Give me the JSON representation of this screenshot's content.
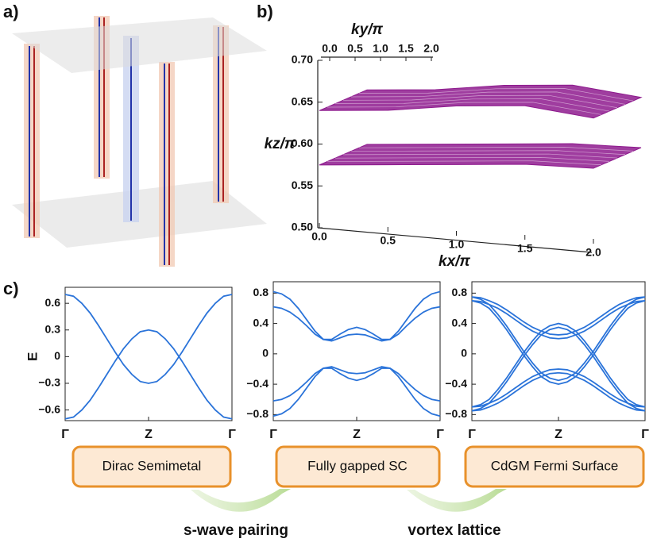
{
  "panel_labels": [
    "a)",
    "b)",
    "c)"
  ],
  "chart_data": [
    {
      "type": "surface3d",
      "xlabel": "kx/π",
      "ylabel": "ky/π",
      "zlabel": "kz/π",
      "xlim": [
        0,
        2
      ],
      "ylim": [
        0,
        2
      ],
      "zlim": [
        0.5,
        0.7
      ],
      "xticks": [
        {
          "value": 0,
          "label": "0.0"
        },
        {
          "value": 0.5,
          "label": "0.5"
        },
        {
          "value": 1,
          "label": "1.0"
        },
        {
          "value": 1.5,
          "label": "1.5"
        },
        {
          "value": 2,
          "label": "2.0"
        }
      ],
      "yticks": [
        {
          "value": 0,
          "label": "0.0"
        },
        {
          "value": 0.5,
          "label": "0.5"
        },
        {
          "value": 1,
          "label": "1.0"
        },
        {
          "value": 1.5,
          "label": "1.5"
        },
        {
          "value": 2,
          "label": "2.0"
        }
      ],
      "zticks": [
        {
          "value": 0.5,
          "label": "0.50"
        },
        {
          "value": 0.55,
          "label": "0.55"
        },
        {
          "value": 0.6,
          "label": "0.60"
        },
        {
          "value": 0.65,
          "label": "0.65"
        },
        {
          "value": 0.7,
          "label": "0.70"
        }
      ],
      "x": [
        0,
        0.5,
        1,
        1.5,
        2
      ],
      "series": [
        {
          "color": "#8e1b8e",
          "values": [
            0.64,
            0.645,
            0.655,
            0.66,
            0.65
          ]
        },
        {
          "color": "#8e1b8e",
          "values": [
            0.575,
            0.58,
            0.585,
            0.59,
            0.59
          ]
        }
      ]
    },
    {
      "type": "line",
      "ylabel": "E",
      "xlim": [
        0,
        2
      ],
      "ylim": [
        -0.72,
        0.78
      ],
      "xticks": [
        {
          "value": 0,
          "label": "Γ"
        },
        {
          "value": 1,
          "label": "Z"
        },
        {
          "value": 2,
          "label": "Γ"
        }
      ],
      "yticks": [
        {
          "value": -0.6,
          "label": "−0.6"
        },
        {
          "value": -0.3,
          "label": "−0.3"
        },
        0,
        0.3,
        0.6
      ],
      "x": [
        0,
        0.1,
        0.2,
        0.3,
        0.4,
        0.5,
        0.6,
        0.7,
        0.8,
        0.9,
        1,
        1.1,
        1.2,
        1.3,
        1.4,
        1.5,
        1.6,
        1.7,
        1.8,
        1.9,
        2
      ],
      "series": [
        {
          "color": "#2a73d9",
          "values": [
            0.7,
            0.68,
            0.6,
            0.49,
            0.35,
            0.2,
            0.05,
            -0.09,
            -0.2,
            -0.28,
            -0.3,
            -0.28,
            -0.2,
            -0.09,
            0.05,
            0.2,
            0.35,
            0.49,
            0.6,
            0.68,
            0.7
          ]
        },
        {
          "color": "#2a73d9",
          "values": [
            -0.7,
            -0.68,
            -0.6,
            -0.49,
            -0.35,
            -0.2,
            -0.05,
            0.09,
            0.2,
            0.28,
            0.3,
            0.28,
            0.2,
            0.09,
            -0.05,
            -0.2,
            -0.35,
            -0.49,
            -0.6,
            -0.68,
            -0.7
          ]
        }
      ]
    },
    {
      "type": "line",
      "xlim": [
        0,
        2
      ],
      "ylim": [
        -0.88,
        0.95
      ],
      "xticks": [
        {
          "value": 0,
          "label": "Γ"
        },
        {
          "value": 1,
          "label": "Z"
        },
        {
          "value": 2,
          "label": "Γ"
        }
      ],
      "yticks": [
        {
          "value": -0.8,
          "label": "−0.8"
        },
        {
          "value": -0.4,
          "label": "−0.4"
        },
        0,
        0.4,
        0.8
      ],
      "x": [
        0,
        0.1,
        0.2,
        0.3,
        0.4,
        0.5,
        0.6,
        0.7,
        0.8,
        0.9,
        1,
        1.1,
        1.2,
        1.3,
        1.4,
        1.5,
        1.6,
        1.7,
        1.8,
        1.9,
        2
      ],
      "series": [
        {
          "color": "#2a73d9",
          "values": [
            0.82,
            0.79,
            0.72,
            0.6,
            0.45,
            0.3,
            0.19,
            0.19,
            0.26,
            0.32,
            0.35,
            0.32,
            0.26,
            0.19,
            0.19,
            0.3,
            0.45,
            0.6,
            0.72,
            0.79,
            0.82
          ]
        },
        {
          "color": "#2a73d9",
          "values": [
            0.62,
            0.6,
            0.55,
            0.47,
            0.37,
            0.26,
            0.19,
            0.17,
            0.21,
            0.25,
            0.26,
            0.25,
            0.21,
            0.17,
            0.19,
            0.26,
            0.37,
            0.47,
            0.55,
            0.6,
            0.62
          ]
        },
        {
          "color": "#2a73d9",
          "values": [
            -0.82,
            -0.79,
            -0.72,
            -0.6,
            -0.45,
            -0.3,
            -0.19,
            -0.19,
            -0.26,
            -0.32,
            -0.35,
            -0.32,
            -0.26,
            -0.19,
            -0.19,
            -0.3,
            -0.45,
            -0.6,
            -0.72,
            -0.79,
            -0.82
          ]
        },
        {
          "color": "#2a73d9",
          "values": [
            -0.62,
            -0.6,
            -0.55,
            -0.47,
            -0.37,
            -0.26,
            -0.19,
            -0.17,
            -0.21,
            -0.25,
            -0.26,
            -0.25,
            -0.21,
            -0.17,
            -0.19,
            -0.26,
            -0.37,
            -0.47,
            -0.55,
            -0.6,
            -0.62
          ]
        }
      ]
    },
    {
      "type": "line",
      "xlim": [
        0,
        2
      ],
      "ylim": [
        -0.88,
        0.95
      ],
      "xticks": [
        {
          "value": 0,
          "label": "Γ"
        },
        {
          "value": 1,
          "label": "Z"
        },
        {
          "value": 2,
          "label": "Γ"
        }
      ],
      "yticks": [
        {
          "value": -0.8,
          "label": "−0.8"
        },
        {
          "value": -0.4,
          "label": "−0.4"
        },
        0,
        0.4,
        0.8
      ],
      "x": [
        0,
        0.1,
        0.2,
        0.3,
        0.4,
        0.5,
        0.6,
        0.7,
        0.8,
        0.9,
        1,
        1.1,
        1.2,
        1.3,
        1.4,
        1.5,
        1.6,
        1.7,
        1.8,
        1.9,
        2
      ],
      "series": [
        {
          "color": "#2a73d9",
          "values": [
            0.7,
            0.67,
            0.6,
            0.47,
            0.32,
            0.15,
            -0.02,
            -0.17,
            -0.3,
            -0.37,
            -0.4,
            -0.37,
            -0.3,
            -0.17,
            -0.02,
            0.15,
            0.32,
            0.47,
            0.6,
            0.67,
            0.7
          ]
        },
        {
          "color": "#2a73d9",
          "values": [
            0.75,
            0.72,
            0.65,
            0.52,
            0.37,
            0.2,
            0.03,
            -0.12,
            -0.25,
            -0.32,
            -0.35,
            -0.32,
            -0.25,
            -0.12,
            0.03,
            0.2,
            0.37,
            0.52,
            0.65,
            0.72,
            0.75
          ]
        },
        {
          "color": "#2a73d9",
          "values": [
            0.7,
            0.69,
            0.65,
            0.6,
            0.53,
            0.45,
            0.37,
            0.3,
            0.25,
            0.21,
            0.2,
            0.21,
            0.25,
            0.3,
            0.37,
            0.45,
            0.53,
            0.6,
            0.65,
            0.69,
            0.7
          ]
        },
        {
          "color": "#2a73d9",
          "values": [
            0.75,
            0.74,
            0.7,
            0.65,
            0.58,
            0.5,
            0.42,
            0.35,
            0.3,
            0.26,
            0.25,
            0.26,
            0.3,
            0.35,
            0.42,
            0.5,
            0.58,
            0.65,
            0.7,
            0.74,
            0.75
          ]
        },
        {
          "color": "#2a73d9",
          "values": [
            -0.7,
            -0.67,
            -0.6,
            -0.47,
            -0.32,
            -0.15,
            0.02,
            0.17,
            0.3,
            0.37,
            0.4,
            0.37,
            0.3,
            0.17,
            0.02,
            -0.15,
            -0.32,
            -0.47,
            -0.6,
            -0.67,
            -0.7
          ]
        },
        {
          "color": "#2a73d9",
          "values": [
            -0.75,
            -0.72,
            -0.65,
            -0.52,
            -0.37,
            -0.2,
            -0.03,
            0.12,
            0.25,
            0.32,
            0.35,
            0.32,
            0.25,
            0.12,
            -0.03,
            -0.2,
            -0.37,
            -0.52,
            -0.65,
            -0.72,
            -0.75
          ]
        },
        {
          "color": "#2a73d9",
          "values": [
            -0.7,
            -0.69,
            -0.65,
            -0.6,
            -0.53,
            -0.45,
            -0.37,
            -0.3,
            -0.25,
            -0.21,
            -0.2,
            -0.21,
            -0.25,
            -0.3,
            -0.37,
            -0.45,
            -0.53,
            -0.6,
            -0.65,
            -0.69,
            -0.7
          ]
        },
        {
          "color": "#2a73d9",
          "values": [
            -0.75,
            -0.74,
            -0.7,
            -0.65,
            -0.58,
            -0.5,
            -0.42,
            -0.35,
            -0.3,
            -0.26,
            -0.25,
            -0.26,
            -0.3,
            -0.35,
            -0.42,
            -0.5,
            -0.58,
            -0.65,
            -0.7,
            -0.74,
            -0.75
          ]
        }
      ]
    }
  ],
  "flow": {
    "boxes": [
      "Dirac Semimetal",
      "Fully gapped SC",
      "CdGM Fermi Surface"
    ],
    "arrows": [
      "s-wave pairing",
      "vortex lattice"
    ]
  }
}
